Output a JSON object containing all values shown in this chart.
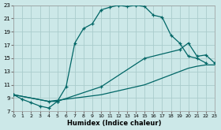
{
  "background_color": "#cce8e8",
  "grid_color": "#aacccc",
  "line_color": "#006666",
  "xlabel": "Humidex (Indice chaleur)",
  "xlim": [
    0,
    23
  ],
  "ylim": [
    7,
    23
  ],
  "xticks": [
    0,
    1,
    2,
    3,
    4,
    5,
    6,
    7,
    8,
    9,
    10,
    11,
    12,
    13,
    14,
    15,
    16,
    17,
    18,
    19,
    20,
    21,
    22,
    23
  ],
  "yticks": [
    7,
    9,
    11,
    13,
    15,
    17,
    19,
    21,
    23
  ],
  "line1_x": [
    0,
    1,
    2,
    3,
    4,
    5,
    6,
    7,
    8,
    9,
    10,
    11,
    12,
    13,
    14,
    15,
    16,
    17,
    18,
    19,
    20,
    21,
    22
  ],
  "line1_y": [
    9.5,
    8.8,
    8.3,
    7.8,
    7.5,
    8.5,
    10.7,
    17.3,
    19.5,
    20.2,
    22.3,
    22.7,
    23.0,
    22.8,
    23.0,
    22.8,
    21.5,
    21.2,
    18.5,
    17.3,
    15.3,
    15.0,
    14.3
  ],
  "line2_x": [
    0,
    4,
    5,
    10,
    15,
    19,
    20,
    21,
    22,
    23
  ],
  "line2_y": [
    9.5,
    8.5,
    8.5,
    10.7,
    15.0,
    16.3,
    17.3,
    15.3,
    15.5,
    14.3
  ],
  "line3_x": [
    0,
    4,
    10,
    15,
    19,
    20,
    21,
    22,
    23
  ],
  "line3_y": [
    9.5,
    8.5,
    9.5,
    11.0,
    13.0,
    13.5,
    13.8,
    14.0,
    14.0
  ]
}
